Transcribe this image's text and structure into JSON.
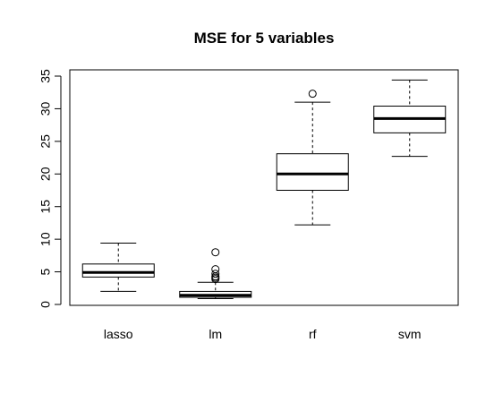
{
  "chart_data": {
    "type": "box",
    "title": "MSE for 5 variables",
    "xlabel": "",
    "ylabel": "",
    "categories": [
      "lasso",
      "lm",
      "rf",
      "svm"
    ],
    "ylim": [
      0,
      35
    ],
    "y_ticks": [
      0,
      5,
      10,
      15,
      20,
      25,
      30,
      35
    ],
    "grid": false,
    "legend": "none",
    "boxes": [
      {
        "name": "lasso",
        "whisker_low": 2.0,
        "q1": 4.2,
        "median": 4.9,
        "q3": 6.2,
        "whisker_high": 9.4,
        "outliers": []
      },
      {
        "name": "lm",
        "whisker_low": 0.9,
        "q1": 1.1,
        "median": 1.4,
        "q3": 2.0,
        "whisker_high": 3.4,
        "outliers": [
          3.9,
          4.1,
          4.3,
          4.7,
          5.4,
          8.0
        ]
      },
      {
        "name": "rf",
        "whisker_low": 12.2,
        "q1": 17.5,
        "median": 20.0,
        "q3": 23.1,
        "whisker_high": 31.0,
        "outliers": [
          32.3
        ]
      },
      {
        "name": "svm",
        "whisker_low": 22.7,
        "q1": 26.3,
        "median": 28.5,
        "q3": 30.4,
        "whisker_high": 34.4,
        "outliers": []
      }
    ]
  }
}
